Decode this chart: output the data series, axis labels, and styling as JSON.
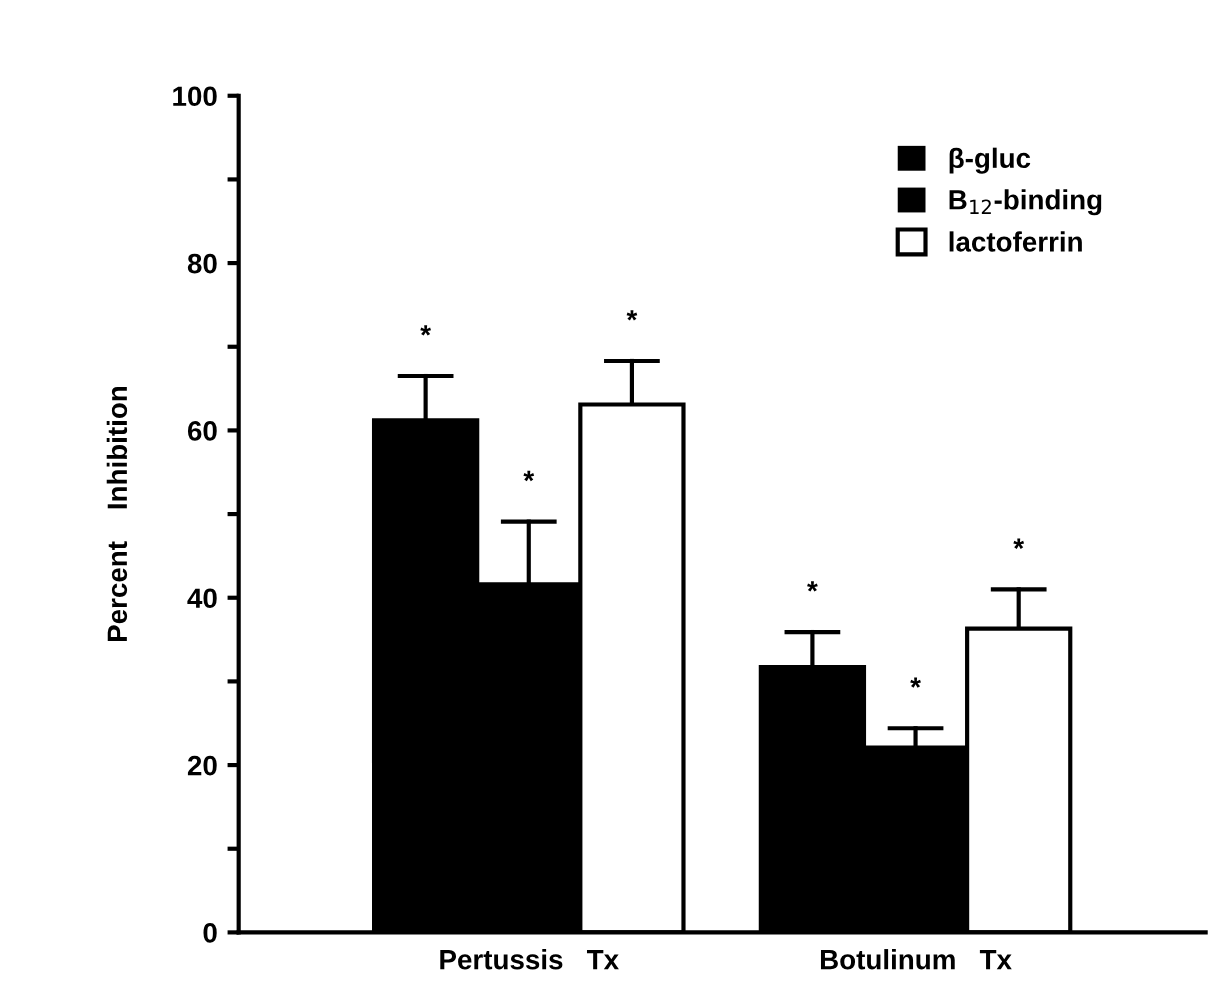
{
  "chart_data": {
    "type": "bar",
    "ylabel": "Percent    Inhibition",
    "categories": [
      "Pertussis   Tx",
      "Botulinum   Tx"
    ],
    "series": [
      {
        "name": "β-gluc",
        "color": "#000000",
        "values": [
          61.2,
          31.7
        ],
        "errors": [
          [
            61.2,
            66.5
          ],
          [
            31.7,
            35.9
          ]
        ]
      },
      {
        "name": "B$_{12}$-binding",
        "color": "#000000",
        "values": [
          41.6,
          22.1
        ],
        "errors": [
          [
            41.6,
            49.1
          ],
          [
            22.1,
            24.4
          ]
        ]
      },
      {
        "name": "lactoferrin",
        "color": "#ffffff",
        "values": [
          63.1,
          36.3
        ],
        "errors": [
          [
            63.1,
            68.3
          ],
          [
            36.3,
            41.0
          ]
        ]
      }
    ],
    "ylim": [
      0,
      100
    ],
    "yticks": [
      0,
      {
        "value": 10,
        "label": null
      },
      20,
      {
        "value": 30,
        "label": null
      },
      40,
      {
        "value": 50,
        "label": null
      },
      60,
      {
        "value": 70,
        "label": null
      },
      80,
      {
        "value": 90,
        "label": null
      },
      100
    ],
    "annotations": [
      "*",
      "*",
      "*",
      "*",
      "*",
      "*"
    ],
    "legend": "top right",
    "grid": false
  }
}
